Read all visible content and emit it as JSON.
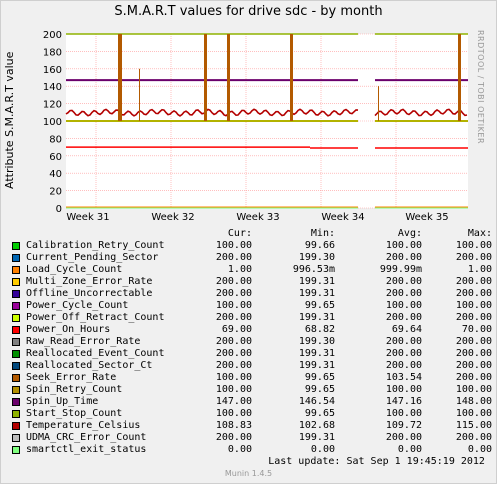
{
  "chart_data": {
    "type": "line",
    "title": "S.M.A.R.T values for drive sdc - by month",
    "ylabel": "Attribute S.M.A.R.T value",
    "xlabel": "",
    "ylim": [
      0,
      200
    ],
    "yticks": [
      0,
      20,
      40,
      60,
      80,
      100,
      120,
      140,
      160,
      180,
      200
    ],
    "xticks": [
      "Week 31",
      "Week 32",
      "Week 33",
      "Week 34",
      "Week 35"
    ],
    "grid": true,
    "legend_placement": "bottom",
    "columns": [
      "Cur:",
      "Min:",
      "Avg:",
      "Max:"
    ],
    "series": [
      {
        "name": "Calibration_Retry_Count",
        "color": "#00cc00",
        "cur": "100.00",
        "min": "99.66",
        "avg": "100.00",
        "max": "100.00"
      },
      {
        "name": "Current_Pending_Sector",
        "color": "#0066b3",
        "cur": "200.00",
        "min": "199.30",
        "avg": "200.00",
        "max": "200.00"
      },
      {
        "name": "Load_Cycle_Count",
        "color": "#ff8000",
        "cur": "1.00",
        "min": "996.53m",
        "avg": "999.99m",
        "max": "1.00"
      },
      {
        "name": "Multi_Zone_Error_Rate",
        "color": "#ffcc00",
        "cur": "200.00",
        "min": "199.31",
        "avg": "200.00",
        "max": "200.00"
      },
      {
        "name": "Offline_Uncorrectable",
        "color": "#330099",
        "cur": "200.00",
        "min": "199.31",
        "avg": "200.00",
        "max": "200.00"
      },
      {
        "name": "Power_Cycle_Count",
        "color": "#990099",
        "cur": "100.00",
        "min": "99.65",
        "avg": "100.00",
        "max": "100.00"
      },
      {
        "name": "Power_Off_Retract_Count",
        "color": "#ccff00",
        "cur": "200.00",
        "min": "199.31",
        "avg": "200.00",
        "max": "200.00"
      },
      {
        "name": "Power_On_Hours",
        "color": "#ff0000",
        "cur": "69.00",
        "min": "68.82",
        "avg": "69.64",
        "max": "70.00"
      },
      {
        "name": "Raw_Read_Error_Rate",
        "color": "#808080",
        "cur": "200.00",
        "min": "199.30",
        "avg": "200.00",
        "max": "200.00"
      },
      {
        "name": "Reallocated_Event_Count",
        "color": "#008f00",
        "cur": "200.00",
        "min": "199.31",
        "avg": "200.00",
        "max": "200.00"
      },
      {
        "name": "Reallocated_Sector_Ct",
        "color": "#00487d",
        "cur": "200.00",
        "min": "199.31",
        "avg": "200.00",
        "max": "200.00"
      },
      {
        "name": "Seek_Error_Rate",
        "color": "#b35a00",
        "cur": "100.00",
        "min": "99.65",
        "avg": "103.54",
        "max": "200.00"
      },
      {
        "name": "Spin_Retry_Count",
        "color": "#b38f00",
        "cur": "100.00",
        "min": "99.65",
        "avg": "100.00",
        "max": "100.00"
      },
      {
        "name": "Spin_Up_Time",
        "color": "#6b006b",
        "cur": "147.00",
        "min": "146.54",
        "avg": "147.16",
        "max": "148.00"
      },
      {
        "name": "Start_Stop_Count",
        "color": "#8fb300",
        "cur": "100.00",
        "min": "99.65",
        "avg": "100.00",
        "max": "100.00"
      },
      {
        "name": "Temperature_Celsius",
        "color": "#b30000",
        "cur": "108.83",
        "min": "102.68",
        "avg": "109.72",
        "max": "115.00"
      },
      {
        "name": "UDMA_CRC_Error_Count",
        "color": "#bebebe",
        "cur": "200.00",
        "min": "199.31",
        "avg": "200.00",
        "max": "200.00"
      },
      {
        "name": "smartctl_exit_status",
        "color": "#80ff80",
        "cur": "0.00",
        "min": "0.00",
        "avg": "0.00",
        "max": "0.00"
      }
    ]
  },
  "side_text": "RRDTOOL / TOBI OETIKER",
  "footer": "Last update:  Sat Sep  1 19:45:19 2012",
  "munin": "Munin 1.4.5"
}
